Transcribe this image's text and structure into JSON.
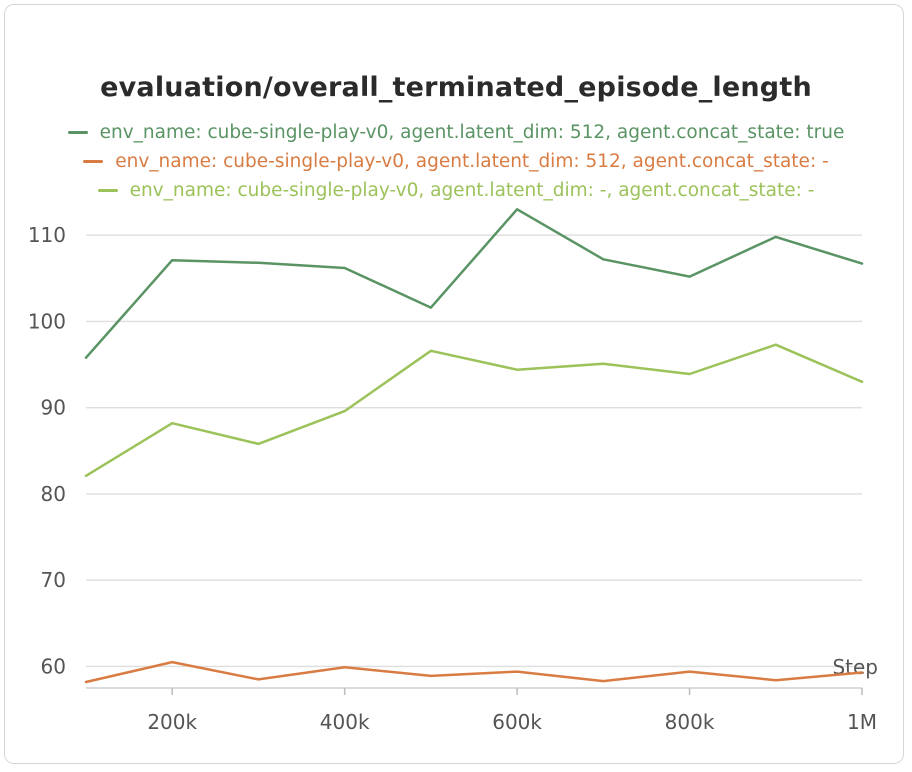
{
  "chart_data": {
    "type": "line",
    "title": "evaluation/overall_terminated_episode_length",
    "xlabel": "Step",
    "ylabel": "",
    "xlim": [
      100000,
      1000000
    ],
    "ylim": [
      57.5,
      113.5
    ],
    "x_ticks": [
      200000,
      400000,
      600000,
      800000,
      1000000
    ],
    "x_tick_labels": [
      "200k",
      "400k",
      "600k",
      "800k",
      "1M"
    ],
    "y_ticks": [
      60,
      70,
      80,
      90,
      100,
      110
    ],
    "y_tick_labels": [
      "60",
      "70",
      "80",
      "90",
      "100",
      "110"
    ],
    "grid": "horizontal",
    "legend_position": "top-center",
    "x": [
      100000,
      200000,
      300000,
      400000,
      500000,
      600000,
      700000,
      800000,
      900000,
      1000000
    ],
    "series": [
      {
        "name": "env_name: cube-single-play-v0, agent.latent_dim: 512, agent.concat_state: true",
        "color": "#5a9464",
        "values": [
          95.8,
          107.1,
          106.8,
          106.2,
          101.6,
          113.0,
          107.2,
          105.2,
          109.8,
          106.7
        ]
      },
      {
        "name": "env_name: cube-single-play-v0, agent.latent_dim: 512, agent.concat_state: -",
        "color": "#d97c43",
        "values": [
          58.2,
          60.5,
          58.5,
          59.9,
          58.9,
          59.4,
          58.3,
          59.4,
          58.4,
          59.3
        ]
      },
      {
        "name": "env_name: cube-single-play-v0, agent.latent_dim: -, agent.concat_state: -",
        "color": "#9cc25a",
        "values": [
          82.1,
          88.2,
          85.8,
          89.6,
          96.6,
          94.4,
          95.1,
          93.9,
          97.3,
          93.0
        ]
      }
    ]
  }
}
